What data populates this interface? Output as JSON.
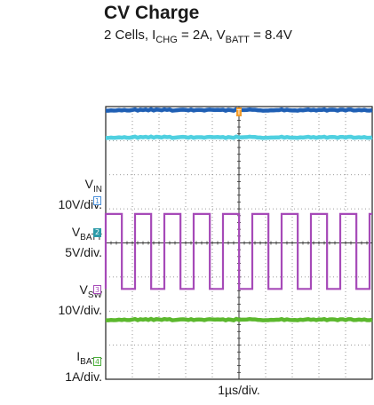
{
  "chart_data": {
    "type": "line",
    "title": "CV Charge",
    "subtitle": {
      "lead": "2 Cells, I",
      "ichg_sub": "CHG",
      "ichg_val": " = 2A, V",
      "vbatt_sub": "BATT",
      "vbatt_val": " = 8.4V"
    },
    "xlabel": "1µs/div.",
    "trigger_marker": "T",
    "divisions": {
      "x": 10,
      "y": 8
    },
    "channels": [
      {
        "id": "1",
        "name": {
          "base": "V",
          "sub": "IN"
        },
        "scale": "10V/div.",
        "color": "#4a8fd9",
        "marker_style": "outline"
      },
      {
        "id": "2",
        "name": {
          "base": "V",
          "sub": "BATT"
        },
        "scale": "5V/div.",
        "color": "#2c9aa8",
        "marker_style": "filled"
      },
      {
        "id": "3",
        "name": {
          "base": "V",
          "sub": "SW"
        },
        "scale": "10V/div.",
        "color": "#a64ab8",
        "marker_style": "outline"
      },
      {
        "id": "4",
        "name": {
          "base": "I",
          "sub": "BATT"
        },
        "scale": "1A/div.",
        "color": "#4caf3c",
        "marker_style": "outline"
      }
    ],
    "traces": [
      {
        "channel": "1",
        "shape": "dc",
        "level_div": 7.9,
        "color": "#1f5fb4"
      },
      {
        "channel": "2",
        "shape": "dc",
        "level_div": 7.1,
        "color": "#4fd0e0"
      },
      {
        "channel": "3",
        "shape": "square",
        "high_div": 4.85,
        "low_div": 2.65,
        "period_div": 1.1,
        "duty": 0.55,
        "first_rise_div": 0.0,
        "color": "#a64ab8"
      },
      {
        "channel": "4",
        "shape": "dc",
        "level_div": 1.75,
        "color": "#5cb82e"
      }
    ]
  }
}
